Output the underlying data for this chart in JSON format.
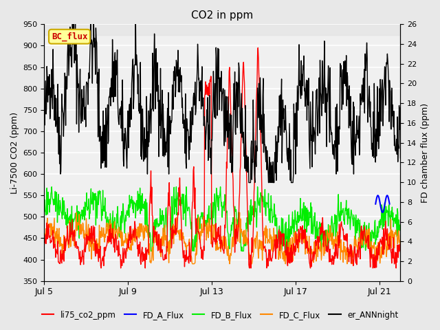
{
  "title": "CO2 in ppm",
  "ylabel_left": "Li-7500 CO2 (ppm)",
  "ylabel_right": "FD chamber flux (ppm)",
  "ylim_left": [
    350,
    950
  ],
  "ylim_right": [
    0,
    26
  ],
  "yticks_left": [
    350,
    400,
    450,
    500,
    550,
    600,
    650,
    700,
    750,
    800,
    850,
    900,
    950
  ],
  "yticks_right": [
    0,
    2,
    4,
    6,
    8,
    10,
    12,
    14,
    16,
    18,
    20,
    22,
    24,
    26
  ],
  "xlim": [
    0,
    17
  ],
  "xtick_labels": [
    "Jul 5",
    "Jul 9",
    "Jul 13",
    "Jul 17",
    "Jul 21"
  ],
  "xtick_positions": [
    0,
    4,
    8,
    12,
    16
  ],
  "background_color": "#e8e8e8",
  "plot_bg_color": "#f0f0f0",
  "grid_color": "#ffffff",
  "legend_entries": [
    "li75_co2_ppm",
    "FD_A_Flux",
    "FD_B_Flux",
    "FD_C_Flux",
    "er_ANNnight"
  ],
  "legend_colors": [
    "#ff0000",
    "#0000ff",
    "#00ff00",
    "#ff8800",
    "#000000"
  ],
  "bc_flux_label": "BC_flux",
  "bc_flux_color": "#cc0000",
  "bc_flux_bg": "#ffff99",
  "bc_flux_border": "#ccaa00"
}
